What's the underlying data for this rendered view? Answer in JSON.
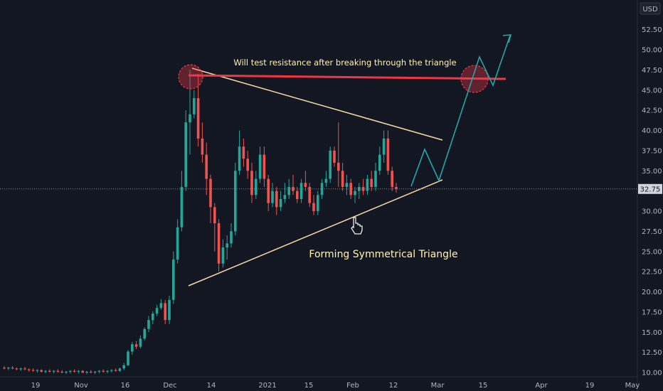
{
  "chart_data": {
    "type": "candlestick",
    "currency": "USD",
    "current_price": "32.75",
    "y_ticks": [
      "10.00",
      "12.50",
      "15.00",
      "17.50",
      "20.00",
      "22.50",
      "25.00",
      "27.50",
      "30.00",
      "32.50",
      "35.00",
      "37.50",
      "40.00",
      "42.50",
      "45.00",
      "47.50",
      "50.00",
      "52.50"
    ],
    "x_ticks": [
      "19",
      "Nov",
      "16",
      "Dec",
      "14",
      "2021",
      "15",
      "Feb",
      "12",
      "Mar",
      "15",
      "Apr",
      "19",
      "May"
    ],
    "annotations": {
      "resistance": "Will test resistance after breaking through the triangle",
      "pattern": "Forming Symmetrical Triangle"
    },
    "colors": {
      "up": "#26a69a",
      "down": "#ef5350",
      "resistance": "#f23645",
      "trendline": "#f7d9a8",
      "projection": "#26a6a6"
    },
    "candles": [
      [
        10.6,
        10.8,
        10.4,
        10.5
      ],
      [
        10.5,
        10.7,
        10.3,
        10.6
      ],
      [
        10.6,
        10.8,
        10.4,
        10.5
      ],
      [
        10.5,
        10.6,
        10.3,
        10.4
      ],
      [
        10.4,
        10.6,
        10.2,
        10.5
      ],
      [
        10.5,
        10.7,
        10.3,
        10.4
      ],
      [
        10.4,
        10.5,
        10.1,
        10.3
      ],
      [
        10.3,
        10.5,
        10.1,
        10.2
      ],
      [
        10.2,
        10.4,
        10.0,
        10.3
      ],
      [
        10.3,
        10.4,
        10.0,
        10.1
      ],
      [
        10.1,
        10.3,
        9.9,
        10.2
      ],
      [
        10.2,
        10.4,
        10.0,
        10.1
      ],
      [
        10.1,
        10.3,
        9.9,
        10.2
      ],
      [
        10.2,
        10.4,
        10.0,
        10.1
      ],
      [
        10.1,
        10.3,
        9.9,
        10.0
      ],
      [
        10.0,
        10.2,
        9.8,
        10.1
      ],
      [
        10.1,
        10.3,
        9.9,
        10.2
      ],
      [
        10.2,
        10.4,
        10.0,
        10.1
      ],
      [
        10.1,
        10.3,
        9.9,
        10.2
      ],
      [
        10.2,
        10.3,
        9.9,
        10.0
      ],
      [
        10.0,
        10.2,
        9.8,
        10.1
      ],
      [
        10.1,
        10.3,
        9.9,
        10.0
      ],
      [
        10.0,
        10.2,
        9.8,
        10.1
      ],
      [
        10.1,
        10.3,
        9.9,
        10.2
      ],
      [
        10.2,
        10.4,
        10.0,
        10.1
      ],
      [
        10.1,
        10.3,
        9.9,
        10.2
      ],
      [
        10.2,
        10.4,
        10.0,
        10.3
      ],
      [
        10.3,
        10.5,
        10.1,
        10.2
      ],
      [
        10.2,
        10.6,
        10.1,
        10.5
      ],
      [
        10.5,
        11.2,
        10.3,
        10.9
      ],
      [
        10.9,
        12.8,
        10.8,
        12.6
      ],
      [
        12.6,
        13.8,
        12.2,
        13.5
      ],
      [
        13.5,
        13.9,
        12.9,
        13.2
      ],
      [
        13.2,
        14.6,
        13.0,
        14.2
      ],
      [
        14.2,
        15.6,
        14.0,
        15.4
      ],
      [
        15.4,
        17.0,
        15.0,
        16.5
      ],
      [
        16.5,
        17.6,
        16.0,
        17.3
      ],
      [
        17.3,
        18.4,
        17.0,
        18.0
      ],
      [
        18.0,
        19.1,
        17.8,
        18.6
      ],
      [
        18.6,
        19.0,
        16.0,
        16.5
      ],
      [
        16.5,
        19.5,
        16.0,
        19.0
      ],
      [
        19.0,
        25.0,
        18.5,
        24.0
      ],
      [
        24.0,
        29.0,
        23.5,
        28.0
      ],
      [
        28.0,
        35.0,
        27.5,
        33.0
      ],
      [
        33.0,
        42.5,
        32.5,
        41.0
      ],
      [
        41.0,
        47.5,
        37.0,
        42.0
      ],
      [
        42.0,
        45.0,
        41.5,
        44.0
      ],
      [
        44.0,
        47.0,
        38.0,
        39.0
      ],
      [
        39.0,
        41.0,
        36.0,
        37.0
      ],
      [
        37.0,
        38.5,
        32.0,
        34.0
      ],
      [
        34.0,
        34.5,
        28.5,
        30.5
      ],
      [
        30.5,
        31.0,
        25.0,
        28.5
      ],
      [
        28.5,
        29.0,
        22.5,
        23.5
      ],
      [
        23.5,
        26.5,
        23.0,
        25.5
      ],
      [
        25.5,
        27.0,
        24.0,
        26.0
      ],
      [
        26.0,
        28.5,
        25.5,
        27.5
      ],
      [
        27.5,
        36.0,
        27.0,
        35.0
      ],
      [
        35.0,
        40.0,
        34.5,
        38.0
      ],
      [
        38.0,
        39.0,
        35.5,
        36.5
      ],
      [
        36.5,
        37.5,
        34.0,
        35.0
      ],
      [
        35.0,
        36.0,
        31.0,
        32.0
      ],
      [
        32.0,
        35.0,
        31.5,
        34.0
      ],
      [
        34.0,
        38.0,
        33.5,
        37.0
      ],
      [
        37.0,
        38.0,
        33.0,
        34.0
      ],
      [
        34.0,
        34.5,
        30.0,
        31.0
      ],
      [
        31.0,
        33.5,
        30.5,
        32.5
      ],
      [
        32.5,
        33.0,
        29.5,
        30.5
      ],
      [
        30.5,
        32.5,
        30.0,
        31.5
      ],
      [
        31.5,
        33.5,
        31.0,
        32.0
      ],
      [
        32.0,
        34.0,
        31.5,
        33.0
      ],
      [
        33.0,
        34.5,
        32.0,
        32.5
      ],
      [
        32.5,
        33.0,
        31.0,
        31.5
      ],
      [
        31.5,
        34.0,
        31.0,
        33.5
      ],
      [
        33.5,
        35.0,
        32.5,
        33.0
      ],
      [
        33.0,
        33.5,
        30.5,
        31.0
      ],
      [
        31.0,
        32.0,
        29.5,
        30.0
      ],
      [
        30.0,
        32.5,
        29.5,
        32.0
      ],
      [
        32.0,
        34.0,
        31.5,
        33.5
      ],
      [
        33.5,
        35.0,
        33.0,
        34.0
      ],
      [
        34.0,
        38.0,
        33.5,
        37.5
      ],
      [
        37.5,
        38.0,
        35.5,
        36.0
      ],
      [
        36.0,
        41.0,
        33.0,
        35.0
      ],
      [
        35.0,
        36.0,
        32.5,
        33.0
      ],
      [
        33.0,
        34.5,
        32.0,
        33.5
      ],
      [
        33.5,
        34.0,
        31.5,
        32.0
      ],
      [
        32.0,
        33.0,
        31.0,
        32.5
      ],
      [
        32.5,
        33.5,
        31.5,
        33.0
      ],
      [
        33.0,
        34.0,
        32.0,
        32.5
      ],
      [
        32.5,
        34.5,
        32.0,
        34.0
      ],
      [
        34.0,
        35.0,
        32.5,
        33.0
      ],
      [
        33.0,
        36.0,
        32.5,
        35.0
      ],
      [
        35.0,
        38.0,
        34.5,
        37.0
      ],
      [
        37.0,
        40.0,
        36.0,
        39.0
      ],
      [
        39.0,
        40.0,
        34.5,
        35.0
      ],
      [
        35.0,
        35.5,
        32.5,
        33.0
      ],
      [
        33.0,
        33.5,
        32.3,
        32.75
      ]
    ]
  }
}
